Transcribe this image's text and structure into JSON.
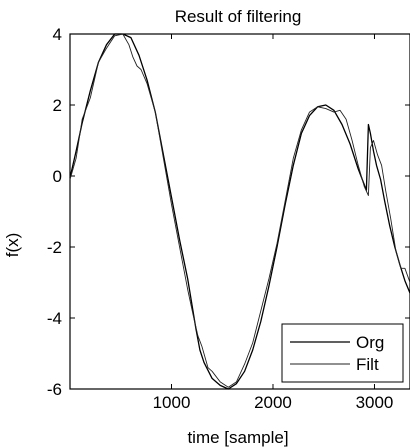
{
  "chart_data": {
    "type": "line",
    "title": "Result of filtering",
    "xlabel": "time [sample]",
    "ylabel": "f(x)",
    "xlim": [
      0,
      3350
    ],
    "ylim": [
      -6,
      4
    ],
    "xticks": [
      1000,
      2000,
      3000
    ],
    "yticks": [
      -6,
      -4,
      -2,
      0,
      2,
      4
    ],
    "xtick_labels": [
      "1000",
      "2000",
      "3000"
    ],
    "ytick_labels": [
      "-6",
      "-4",
      "-2",
      "0",
      "2",
      "4"
    ],
    "grid": false,
    "legend_position": "bottom-right",
    "series": [
      {
        "name": "Org",
        "color": "#000000",
        "x": [
          0,
          60,
          120,
          200,
          280,
          360,
          440,
          520,
          600,
          680,
          760,
          840,
          920,
          1000,
          1080,
          1160,
          1240,
          1280,
          1320,
          1400,
          1480,
          1560,
          1640,
          1720,
          1800,
          1880,
          1960,
          2040,
          2120,
          2200,
          2280,
          2360,
          2440,
          2520,
          2600,
          2680,
          2760,
          2840,
          2880,
          2920,
          2940,
          2960,
          2990,
          3020,
          3060,
          3100,
          3150,
          3200,
          3250,
          3300,
          3350
        ],
        "y": [
          -0.05,
          0.7,
          1.5,
          2.4,
          3.2,
          3.7,
          4.0,
          4.0,
          3.9,
          3.4,
          2.7,
          1.8,
          0.6,
          -0.6,
          -1.8,
          -2.9,
          -4.3,
          -4.9,
          -5.25,
          -5.7,
          -5.9,
          -6.0,
          -5.85,
          -5.5,
          -4.9,
          -4.1,
          -3.1,
          -2.0,
          -0.8,
          0.3,
          1.2,
          1.7,
          1.95,
          2.0,
          1.85,
          1.45,
          0.9,
          0.2,
          -0.1,
          -0.4,
          1.45,
          1.2,
          0.7,
          0.3,
          -0.1,
          -0.7,
          -1.4,
          -2.0,
          -2.5,
          -2.95,
          -3.3
        ]
      },
      {
        "name": "Filt",
        "color": "#222222",
        "x": [
          0,
          60,
          120,
          200,
          280,
          360,
          440,
          520,
          580,
          620,
          660,
          700,
          760,
          840,
          920,
          1000,
          1080,
          1160,
          1220,
          1260,
          1300,
          1360,
          1400,
          1480,
          1560,
          1640,
          1720,
          1800,
          1880,
          1960,
          2040,
          2120,
          2200,
          2280,
          2360,
          2440,
          2520,
          2600,
          2660,
          2720,
          2780,
          2840,
          2900,
          2940,
          2960,
          2990,
          3030,
          3070,
          3110,
          3160,
          3210,
          3260,
          3300,
          3350
        ],
        "y": [
          -0.1,
          0.5,
          1.6,
          2.2,
          3.2,
          3.6,
          3.95,
          4.0,
          3.7,
          3.35,
          3.1,
          3.0,
          2.6,
          1.8,
          0.5,
          -0.8,
          -2.0,
          -3.2,
          -4.0,
          -4.5,
          -4.8,
          -5.4,
          -5.5,
          -5.8,
          -5.95,
          -5.8,
          -5.3,
          -4.7,
          -3.8,
          -2.9,
          -1.9,
          -0.7,
          0.5,
          1.3,
          1.8,
          1.95,
          1.9,
          1.8,
          1.85,
          1.6,
          1.0,
          0.3,
          -0.3,
          -0.55,
          0.8,
          1.0,
          0.6,
          0.3,
          -0.4,
          -1.2,
          -2.1,
          -2.6,
          -2.6,
          -3.0
        ]
      }
    ]
  }
}
